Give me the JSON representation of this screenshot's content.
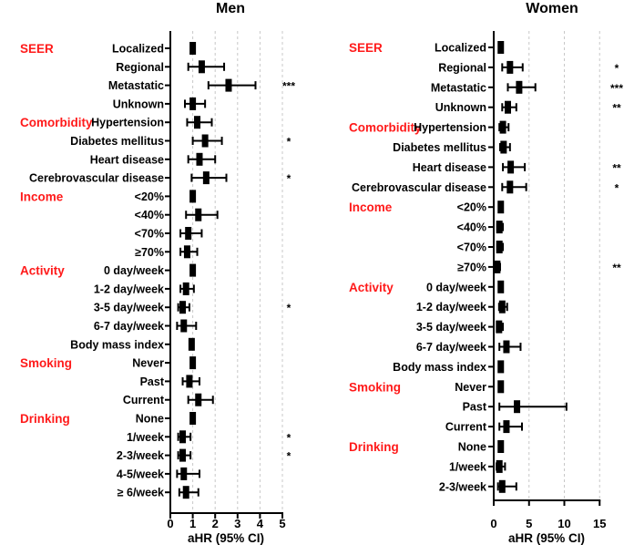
{
  "chart_data": [
    {
      "type": "forest",
      "title": "Men",
      "xlabel": "aHR (95% CI)",
      "xlim": [
        0,
        5
      ],
      "xticks": [
        "0",
        "1",
        "2",
        "3",
        "4",
        "5"
      ],
      "reference_line": 1,
      "grid": "dashed vertical",
      "categories": [
        {
          "label": "SEER",
          "row": 0
        },
        {
          "label": "Comorbidity",
          "row": 4
        },
        {
          "label": "Income",
          "row": 8
        },
        {
          "label": "Activity",
          "row": 12
        },
        {
          "label": "Smoking",
          "row": 17
        },
        {
          "label": "Drinking",
          "row": 20
        }
      ],
      "rows": [
        {
          "label": "Localized",
          "hr": 1.0,
          "lo": 1.0,
          "hi": 1.0,
          "sig": ""
        },
        {
          "label": "Regional",
          "hr": 1.4,
          "lo": 0.8,
          "hi": 2.4,
          "sig": ""
        },
        {
          "label": "Metastatic",
          "hr": 2.6,
          "lo": 1.7,
          "hi": 3.8,
          "sig": "***"
        },
        {
          "label": "Unknown",
          "hr": 1.0,
          "lo": 0.65,
          "hi": 1.55,
          "sig": ""
        },
        {
          "label": "Hypertension",
          "hr": 1.2,
          "lo": 0.75,
          "hi": 1.85,
          "sig": ""
        },
        {
          "label": "Diabetes mellitus",
          "hr": 1.55,
          "lo": 1.0,
          "hi": 2.3,
          "sig": "*"
        },
        {
          "label": "Heart disease",
          "hr": 1.3,
          "lo": 0.8,
          "hi": 2.0,
          "sig": ""
        },
        {
          "label": "Cerebrovascular disease",
          "hr": 1.6,
          "lo": 0.95,
          "hi": 2.5,
          "sig": "*"
        },
        {
          "label": "<20%",
          "hr": 1.0,
          "lo": 1.0,
          "hi": 1.0,
          "sig": ""
        },
        {
          "label": "<40%",
          "hr": 1.25,
          "lo": 0.7,
          "hi": 2.1,
          "sig": ""
        },
        {
          "label": "<70%",
          "hr": 0.8,
          "lo": 0.45,
          "hi": 1.4,
          "sig": ""
        },
        {
          "label": "≥70%",
          "hr": 0.75,
          "lo": 0.45,
          "hi": 1.2,
          "sig": ""
        },
        {
          "label": "0 day/week",
          "hr": 1.0,
          "lo": 1.0,
          "hi": 1.0,
          "sig": ""
        },
        {
          "label": "1-2 day/week",
          "hr": 0.7,
          "lo": 0.45,
          "hi": 1.05,
          "sig": ""
        },
        {
          "label": "3-5 day/week",
          "hr": 0.55,
          "lo": 0.35,
          "hi": 0.85,
          "sig": "*"
        },
        {
          "label": "6-7 day/week",
          "hr": 0.6,
          "lo": 0.3,
          "hi": 1.15,
          "sig": ""
        },
        {
          "label": "Body mass index",
          "hr": 0.95,
          "lo": 0.95,
          "hi": 0.95,
          "sig": ""
        },
        {
          "label": "Never",
          "hr": 1.0,
          "lo": 1.0,
          "hi": 1.0,
          "sig": ""
        },
        {
          "label": "Past",
          "hr": 0.85,
          "lo": 0.55,
          "hi": 1.3,
          "sig": ""
        },
        {
          "label": "Current",
          "hr": 1.25,
          "lo": 0.8,
          "hi": 1.9,
          "sig": ""
        },
        {
          "label": "None",
          "hr": 1.0,
          "lo": 1.0,
          "hi": 1.0,
          "sig": ""
        },
        {
          "label": "1/week",
          "hr": 0.55,
          "lo": 0.35,
          "hi": 0.9,
          "sig": "*"
        },
        {
          "label": "2-3/week",
          "hr": 0.55,
          "lo": 0.35,
          "hi": 0.9,
          "sig": "*"
        },
        {
          "label": "4-5/week",
          "hr": 0.6,
          "lo": 0.3,
          "hi": 1.3,
          "sig": ""
        },
        {
          "label": "≥ 6/week",
          "hr": 0.7,
          "lo": 0.4,
          "hi": 1.25,
          "sig": ""
        }
      ]
    },
    {
      "type": "forest",
      "title": "Women",
      "xlabel": "aHR (95% CI)",
      "xlim": [
        0,
        15
      ],
      "xticks": [
        "0",
        "5",
        "10",
        "15"
      ],
      "reference_line": 1,
      "grid": "dashed vertical",
      "categories": [
        {
          "label": "SEER",
          "row": 0
        },
        {
          "label": "Comorbidity",
          "row": 4
        },
        {
          "label": "Income",
          "row": 8
        },
        {
          "label": "Activity",
          "row": 12
        },
        {
          "label": "Smoking",
          "row": 17
        },
        {
          "label": "Drinking",
          "row": 20
        }
      ],
      "rows": [
        {
          "label": "Localized",
          "hr": 1.0,
          "lo": 1.0,
          "hi": 1.0,
          "sig": ""
        },
        {
          "label": "Regional",
          "hr": 2.3,
          "lo": 1.2,
          "hi": 4.1,
          "sig": "*"
        },
        {
          "label": "Metastatic",
          "hr": 3.6,
          "lo": 2.0,
          "hi": 5.9,
          "sig": "***"
        },
        {
          "label": "Unknown",
          "hr": 2.0,
          "lo": 1.2,
          "hi": 3.2,
          "sig": "**"
        },
        {
          "label": "Hypertension",
          "hr": 1.3,
          "lo": 0.8,
          "hi": 2.1,
          "sig": ""
        },
        {
          "label": "Diabetes mellitus",
          "hr": 1.4,
          "lo": 0.9,
          "hi": 2.3,
          "sig": ""
        },
        {
          "label": "Heart disease",
          "hr": 2.4,
          "lo": 1.3,
          "hi": 4.4,
          "sig": "**"
        },
        {
          "label": "Cerebrovascular disease",
          "hr": 2.3,
          "lo": 1.2,
          "hi": 4.6,
          "sig": "*"
        },
        {
          "label": "<20%",
          "hr": 1.0,
          "lo": 1.0,
          "hi": 1.0,
          "sig": ""
        },
        {
          "label": "<40%",
          "hr": 0.8,
          "lo": 0.5,
          "hi": 1.3,
          "sig": ""
        },
        {
          "label": "<70%",
          "hr": 0.8,
          "lo": 0.5,
          "hi": 1.3,
          "sig": ""
        },
        {
          "label": "≥70%",
          "hr": 0.5,
          "lo": 0.3,
          "hi": 0.9,
          "sig": "**"
        },
        {
          "label": "0 day/week",
          "hr": 1.0,
          "lo": 1.0,
          "hi": 1.0,
          "sig": ""
        },
        {
          "label": "1-2 day/week",
          "hr": 1.2,
          "lo": 0.75,
          "hi": 1.9,
          "sig": ""
        },
        {
          "label": "3-5 day/week",
          "hr": 0.75,
          "lo": 0.45,
          "hi": 1.3,
          "sig": ""
        },
        {
          "label": "6-7 day/week",
          "hr": 1.8,
          "lo": 0.8,
          "hi": 3.8,
          "sig": ""
        },
        {
          "label": "Body mass index",
          "hr": 1.0,
          "lo": 1.0,
          "hi": 1.0,
          "sig": ""
        },
        {
          "label": "Never",
          "hr": 1.0,
          "lo": 1.0,
          "hi": 1.0,
          "sig": ""
        },
        {
          "label": "Past",
          "hr": 3.3,
          "lo": 0.8,
          "hi": 10.3,
          "sig": ""
        },
        {
          "label": "Current",
          "hr": 1.8,
          "lo": 0.8,
          "hi": 4.0,
          "sig": ""
        },
        {
          "label": "None",
          "hr": 1.0,
          "lo": 1.0,
          "hi": 1.0,
          "sig": ""
        },
        {
          "label": "1/week",
          "hr": 0.8,
          "lo": 0.4,
          "hi": 1.6,
          "sig": ""
        },
        {
          "label": "2-3/week",
          "hr": 1.2,
          "lo": 0.6,
          "hi": 3.2,
          "sig": ""
        }
      ]
    }
  ]
}
